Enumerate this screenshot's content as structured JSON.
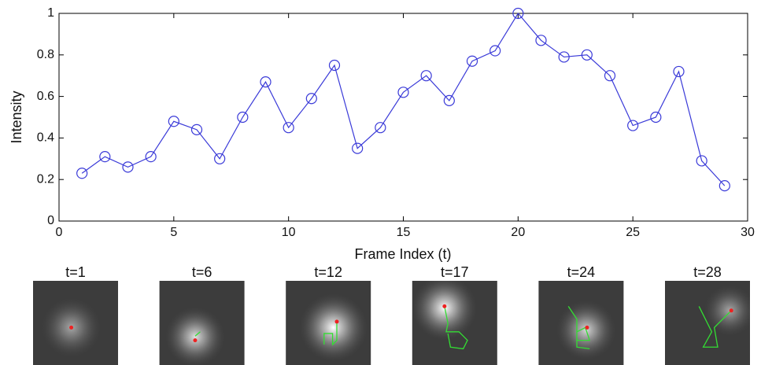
{
  "chart_data": {
    "type": "line",
    "xlabel": "Frame Index (t)",
    "ylabel": "Intensity",
    "x": [
      1,
      2,
      3,
      4,
      5,
      6,
      7,
      8,
      9,
      10,
      11,
      12,
      13,
      14,
      15,
      16,
      17,
      18,
      19,
      20,
      21,
      22,
      23,
      24,
      25,
      26,
      27,
      28,
      29
    ],
    "values": [
      0.23,
      0.31,
      0.26,
      0.31,
      0.48,
      0.44,
      0.3,
      0.5,
      0.67,
      0.45,
      0.59,
      0.75,
      0.35,
      0.45,
      0.62,
      0.7,
      0.58,
      0.77,
      0.82,
      1.0,
      0.87,
      0.79,
      0.8,
      0.7,
      0.46,
      0.5,
      0.72,
      0.29,
      0.17
    ],
    "color": "#3a3ad8",
    "marker": "circle",
    "xlim": [
      0,
      30
    ],
    "xticks": [
      0,
      5,
      10,
      15,
      20,
      25,
      30
    ],
    "ylim": [
      0,
      1
    ],
    "yticks": [
      0,
      0.2,
      0.4,
      0.6,
      0.8,
      1
    ]
  },
  "frames": [
    "t=1",
    "t=6",
    "t=12",
    "t=17",
    "t=24",
    "t=28"
  ]
}
